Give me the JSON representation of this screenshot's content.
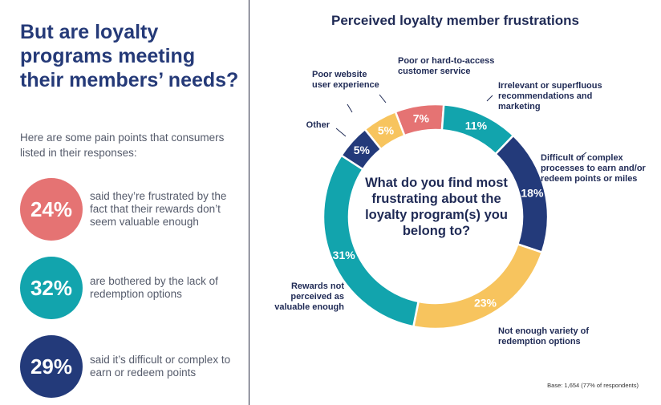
{
  "left": {
    "headline": "But are loyalty programs meeting their members’ needs?",
    "intro": "Here are some pain points that consumers listed in their responses:",
    "stats": [
      {
        "value": "24%",
        "text": "said they’re frustrated by the fact that their rewards don’t seem valuable enough",
        "color": "#e57373"
      },
      {
        "value": "32%",
        "text": "are bothered by the lack of redemption options",
        "color": "#12a4ad"
      },
      {
        "value": "29%",
        "text": "said it’s difficult or complex to earn or redeem points",
        "color": "#233a7a"
      }
    ]
  },
  "chart_data": {
    "type": "pie",
    "title": "Perceived loyalty member frustrations",
    "center_text": "What do you find most frustrating about the loyalty program(s) you belong to?",
    "categories": [
      "Poor or hard-to-access customer service",
      "Irrelevant or superfluous recommendations and marketing",
      "Difficult or complex processes to earn and/or redeem points or miles",
      "Not enough variety of redemption options",
      "Rewards not perceived as valuable enough",
      "Other",
      "Poor website user experience"
    ],
    "values": [
      7,
      11,
      18,
      23,
      31,
      5,
      5
    ],
    "value_labels": [
      "7%",
      "11%",
      "18%",
      "23%",
      "31%",
      "5%",
      "5%"
    ],
    "colors": [
      "#e57373",
      "#12a4ad",
      "#233a7a",
      "#f7c45e",
      "#12a4ad",
      "#233a7a",
      "#f7c45e"
    ],
    "note": "Base: 1,654 (77% of respondents)"
  }
}
